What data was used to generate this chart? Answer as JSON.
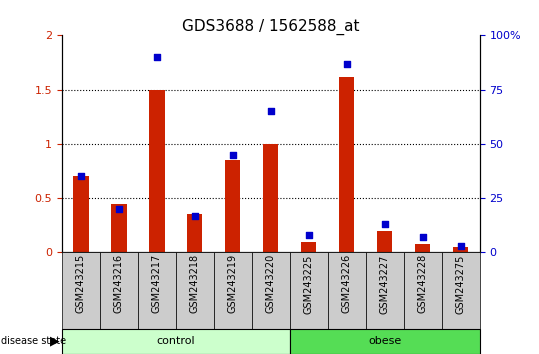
{
  "title": "GDS3688 / 1562588_at",
  "samples": [
    "GSM243215",
    "GSM243216",
    "GSM243217",
    "GSM243218",
    "GSM243219",
    "GSM243220",
    "GSM243225",
    "GSM243226",
    "GSM243227",
    "GSM243228",
    "GSM243275"
  ],
  "red_values": [
    0.7,
    0.45,
    1.5,
    0.35,
    0.85,
    1.0,
    0.1,
    1.62,
    0.2,
    0.08,
    0.05
  ],
  "blue_values": [
    35,
    20,
    90,
    17,
    45,
    65,
    8,
    87,
    13,
    7,
    3
  ],
  "n_control": 6,
  "n_obese": 5,
  "red_color": "#cc2200",
  "blue_color": "#0000cc",
  "left_ylim": [
    0,
    2
  ],
  "right_ylim": [
    0,
    100
  ],
  "left_yticks": [
    0,
    0.5,
    1.0,
    1.5,
    2.0
  ],
  "left_yticklabels": [
    "0",
    "0.5",
    "1",
    "1.5",
    "2"
  ],
  "right_yticks": [
    0,
    25,
    50,
    75,
    100
  ],
  "right_yticklabels": [
    "0",
    "25",
    "50",
    "75",
    "100%"
  ],
  "control_color": "#ccffcc",
  "obese_color": "#55dd55",
  "sample_bg_color": "#cccccc",
  "chart_bg_color": "#ffffff",
  "title_fontsize": 11,
  "bar_width": 0.4,
  "blue_marker_size": 18,
  "tick_fontsize": 8,
  "label_fontsize": 7,
  "group_fontsize": 8,
  "legend_fontsize": 7.5
}
